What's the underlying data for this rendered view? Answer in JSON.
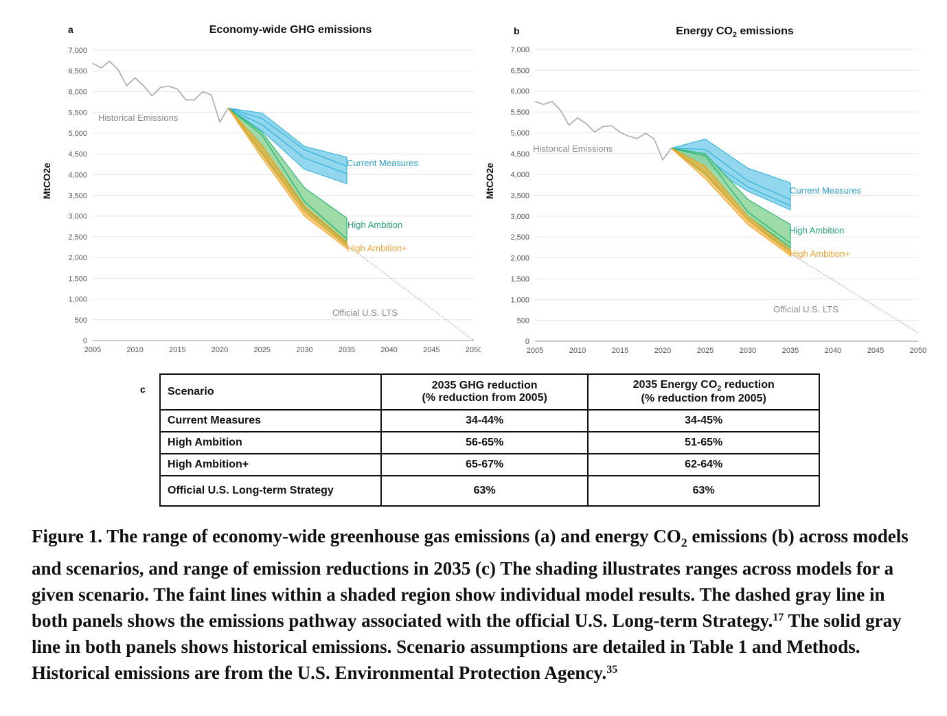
{
  "panel_a": {
    "letter": "a",
    "title": "Economy-wide GHG emissions",
    "ylabel": "MtCO2e"
  },
  "panel_b": {
    "letter": "b",
    "title_main": "Energy CO",
    "title_sub": "2",
    "title_end": " emissions",
    "ylabel": "MtCO2e"
  },
  "colors": {
    "current": "#3db6dc",
    "current_fill": "#7fd0ea",
    "high": "#2bb673",
    "high_fill": "#8ed49a",
    "highplus": "#f5a623",
    "historical": "#aaaaaa",
    "lts": "#aaaaaa"
  },
  "chart_data": [
    {
      "type": "line",
      "panel": "a",
      "title": "Economy-wide GHG emissions",
      "xlabel": "",
      "ylabel": "MtCO2e",
      "xlim": [
        2005,
        2050
      ],
      "ylim": [
        0,
        7000
      ],
      "xticks": [
        2005,
        2010,
        2015,
        2020,
        2025,
        2030,
        2035,
        2040,
        2045,
        2050
      ],
      "yticks": [
        0,
        500,
        1000,
        1500,
        2000,
        2500,
        3000,
        3500,
        4000,
        4500,
        5000,
        5500,
        6000,
        6500,
        7000
      ],
      "ytick_labels": [
        "0",
        "500",
        "1,000",
        "1,500",
        "2,000",
        "2,500",
        "3,000",
        "3,500",
        "4,000",
        "4,500",
        "5,000",
        "5,500",
        "6,000",
        "6,500",
        "7,000"
      ],
      "historical": {
        "name": "Historical Emissions",
        "x": [
          2005,
          2006,
          2007,
          2008,
          2009,
          2010,
          2011,
          2012,
          2013,
          2014,
          2015,
          2016,
          2017,
          2018,
          2019,
          2020,
          2021
        ],
        "y": [
          6680,
          6570,
          6730,
          6530,
          6140,
          6330,
          6140,
          5900,
          6100,
          6130,
          6060,
          5800,
          5800,
          6000,
          5920,
          5270,
          5600
        ]
      },
      "series": [
        {
          "name": "Current Measures",
          "x": [
            2021,
            2025,
            2030,
            2035
          ],
          "lower": [
            5600,
            5050,
            4130,
            3780
          ],
          "upper": [
            5600,
            5480,
            4680,
            4420
          ],
          "lines": [
            [
              5600,
              5200,
              4400,
              4020
            ],
            [
              5600,
              5350,
              4600,
              4200
            ]
          ]
        },
        {
          "name": "High Ambition",
          "x": [
            2021,
            2025,
            2030,
            2035
          ],
          "lower": [
            5600,
            4500,
            3100,
            2280
          ],
          "upper": [
            5600,
            5020,
            3680,
            2950
          ],
          "lines": [
            [
              5600,
              4950,
              3350,
              2450
            ],
            [
              5600,
              4700,
              3200,
              2350
            ]
          ]
        },
        {
          "name": "High Ambition+",
          "x": [
            2021,
            2025,
            2030,
            2035
          ],
          "lower": [
            5600,
            4400,
            3000,
            2220
          ],
          "upper": [
            5600,
            4700,
            3250,
            2380
          ],
          "lines": [
            [
              5600,
              4550,
              3100,
              2300
            ]
          ]
        }
      ],
      "lts": {
        "name": "Official U.S. LTS",
        "x": [
          2035,
          2050
        ],
        "y": [
          2300,
          0
        ]
      },
      "annotations": {
        "historical": "Historical Emissions",
        "current": "Current Measures",
        "high": "High Ambition",
        "highplus": "High Ambition+",
        "lts": "Official U.S. LTS"
      }
    },
    {
      "type": "line",
      "panel": "b",
      "title": "Energy CO2 emissions",
      "xlabel": "",
      "ylabel": "MtCO2e",
      "xlim": [
        2005,
        2050
      ],
      "ylim": [
        0,
        7000
      ],
      "xticks": [
        2005,
        2010,
        2015,
        2020,
        2025,
        2030,
        2035,
        2040,
        2045,
        2050
      ],
      "yticks": [
        0,
        500,
        1000,
        1500,
        2000,
        2500,
        3000,
        3500,
        4000,
        4500,
        5000,
        5500,
        6000,
        6500,
        7000
      ],
      "ytick_labels": [
        "0",
        "500",
        "1,000",
        "1,500",
        "2,000",
        "2,500",
        "3,000",
        "3,500",
        "4,000",
        "4,500",
        "5,000",
        "5,500",
        "6,000",
        "6,500",
        "7,000"
      ],
      "historical": {
        "name": "Historical Emissions",
        "x": [
          2005,
          2006,
          2007,
          2008,
          2009,
          2010,
          2011,
          2012,
          2013,
          2014,
          2015,
          2016,
          2017,
          2018,
          2019,
          2020,
          2021
        ],
        "y": [
          5750,
          5680,
          5750,
          5540,
          5180,
          5360,
          5220,
          5020,
          5150,
          5170,
          5010,
          4920,
          4860,
          4990,
          4850,
          4350,
          4630
        ]
      },
      "series": [
        {
          "name": "Current Measures",
          "x": [
            2021,
            2025,
            2030,
            2035
          ],
          "lower": [
            4630,
            4250,
            3600,
            3150
          ],
          "upper": [
            4630,
            4850,
            4150,
            3800
          ],
          "lines": [
            [
              4630,
              4600,
              3850,
              3400
            ],
            [
              4630,
              4400,
              3700,
              3250
            ]
          ]
        },
        {
          "name": "High Ambition",
          "x": [
            2021,
            2025,
            2030,
            2035
          ],
          "lower": [
            4630,
            4000,
            2900,
            2150
          ],
          "upper": [
            4630,
            4500,
            3400,
            2800
          ],
          "lines": [
            [
              4630,
              4450,
              3100,
              2350
            ],
            [
              4630,
              4200,
              3000,
              2250
            ]
          ]
        },
        {
          "name": "High Ambition+",
          "x": [
            2021,
            2025,
            2030,
            2035
          ],
          "lower": [
            4630,
            3900,
            2800,
            2050
          ],
          "upper": [
            4630,
            4200,
            3000,
            2200
          ],
          "lines": [
            [
              4630,
              4050,
              2900,
              2100
            ]
          ]
        }
      ],
      "lts": {
        "name": "Official U.S. LTS",
        "x": [
          2035,
          2050
        ],
        "y": [
          2100,
          200
        ]
      },
      "annotations": {
        "historical": "Historical Emissions",
        "current": "Current Measures",
        "high": "High Ambition",
        "highplus": "High Ambition+",
        "lts": "Official U.S. LTS"
      }
    }
  ],
  "table": {
    "letter": "c",
    "header": {
      "col1": "Scenario",
      "col2_line1": "2035 GHG reduction",
      "col2_line2": "(% reduction from 2005)",
      "col3_line1a": "2035 Energy CO",
      "col3_line1sub": "2",
      "col3_line1b": " reduction",
      "col3_line2": "(% reduction from 2005)"
    },
    "rows": [
      {
        "scenario": "Current Measures",
        "ghg": "34-44%",
        "co2": "34-45%"
      },
      {
        "scenario": "High Ambition",
        "ghg": "56-65%",
        "co2": "51-65%"
      },
      {
        "scenario": "High Ambition+",
        "ghg": "65-67%",
        "co2": "62-64%"
      },
      {
        "scenario": "Official U.S. Long-term Strategy",
        "ghg": "63%",
        "co2": "63%"
      }
    ]
  },
  "caption": {
    "part1": "Figure 1. The range of economy-wide greenhouse gas emissions (a) and energy CO",
    "sub": "2",
    "part2": " emissions (b) across models and scenarios, and range of emission reductions in 2035 (c) The shading illustrates ranges across models for a given scenario. The faint lines within a shaded region show individual model results. The dashed gray line in both panels shows the emissions pathway associated with the official U.S. Long-term Strategy.",
    "ref1": "17",
    "part3": " The solid gray line in both panels shows historical emissions. Scenario assumptions are detailed in Table 1 and Methods. Historical emissions are from the U.S. Environmental Protection Agency.",
    "ref2": "35"
  }
}
